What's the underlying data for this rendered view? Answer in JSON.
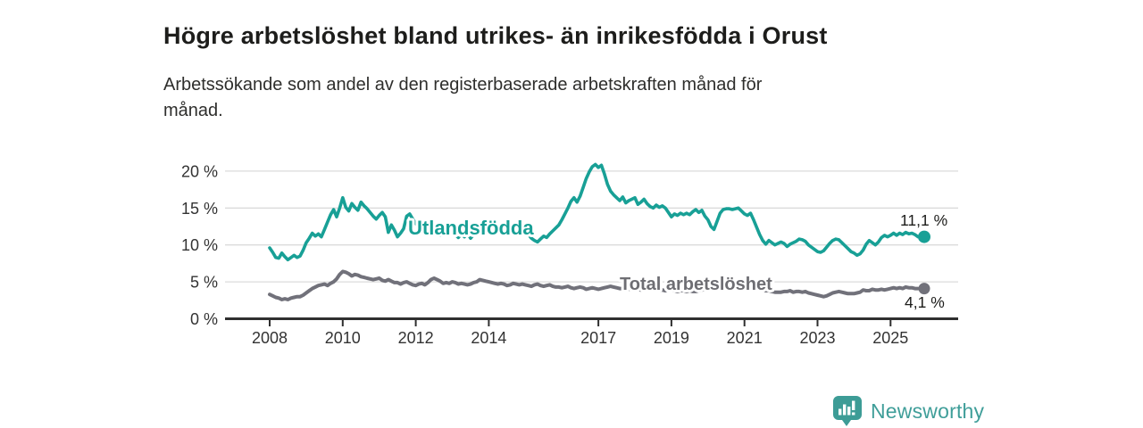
{
  "chart_data": {
    "type": "line",
    "title": "Högre arbetslöshet bland utrikes- än inrikesfödda i Orust",
    "subtitle": "Arbetssökande som andel av den registerbaserade arbetskraften månad för månad.",
    "y_unit": "%",
    "ylim": [
      0,
      21
    ],
    "xlim": [
      2007.9,
      2026.1
    ],
    "grid": "horizontal",
    "legend_position": "inline-labels",
    "x_interval": "monthly",
    "x_start_year": 2008,
    "y_ticks": [
      {
        "value": 0,
        "label": "0 %"
      },
      {
        "value": 5,
        "label": "5 %"
      },
      {
        "value": 10,
        "label": "10 %"
      },
      {
        "value": 15,
        "label": "15 %"
      },
      {
        "value": 20,
        "label": "20 %"
      }
    ],
    "x_ticks": [
      {
        "value": 2008,
        "label": "2008"
      },
      {
        "value": 2010,
        "label": "2010"
      },
      {
        "value": 2012,
        "label": "2012"
      },
      {
        "value": 2014,
        "label": "2014"
      },
      {
        "value": 2017,
        "label": "2017"
      },
      {
        "value": 2019,
        "label": "2019"
      },
      {
        "value": 2021,
        "label": "2021"
      },
      {
        "value": 2023,
        "label": "2023"
      },
      {
        "value": 2025,
        "label": "2025"
      }
    ],
    "series": [
      {
        "id": "utlandsfodda",
        "name": "Utlandsfödda",
        "color": "#18A096",
        "end_label": "11,1 %",
        "end_value": 11.1,
        "values": [
          9.6,
          9.0,
          8.3,
          8.2,
          8.9,
          8.4,
          8.0,
          8.3,
          8.6,
          8.3,
          8.5,
          9.3,
          10.3,
          10.9,
          11.6,
          11.2,
          11.5,
          11.1,
          12.1,
          13.1,
          14.1,
          14.8,
          13.8,
          15.0,
          16.4,
          15.1,
          14.6,
          15.6,
          15.1,
          14.7,
          15.8,
          15.3,
          14.9,
          14.4,
          13.9,
          13.5,
          14.0,
          14.4,
          13.8,
          11.7,
          12.7,
          12.0,
          11.1,
          11.6,
          12.2,
          13.9,
          14.2,
          13.5,
          12.9,
          12.5,
          12.2,
          11.6,
          12.0,
          11.7,
          11.4,
          11.8,
          11.3,
          12.0,
          12.6,
          12.9,
          12.4,
          11.4,
          11.0,
          11.5,
          11.1,
          11.6,
          10.9,
          11.4,
          11.8,
          11.6,
          12.0,
          11.8,
          12.2,
          12.0,
          11.9,
          12.1,
          12.3,
          12.0,
          11.8,
          12.0,
          12.1,
          11.9,
          11.7,
          11.8,
          11.9,
          11.4,
          10.9,
          10.6,
          10.4,
          10.8,
          11.2,
          11.0,
          11.5,
          11.9,
          12.3,
          12.7,
          13.4,
          14.2,
          15.0,
          15.9,
          16.4,
          15.8,
          16.6,
          17.8,
          19.0,
          19.9,
          20.6,
          20.9,
          20.5,
          20.8,
          19.6,
          18.2,
          17.3,
          16.8,
          16.4,
          16.0,
          16.5,
          15.7,
          16.0,
          16.2,
          16.4,
          15.5,
          15.8,
          16.2,
          15.6,
          15.2,
          15.0,
          15.4,
          15.1,
          15.3,
          15.0,
          14.4,
          13.8,
          14.2,
          14.0,
          14.3,
          14.1,
          14.3,
          14.1,
          14.5,
          14.8,
          14.4,
          14.7,
          13.9,
          13.4,
          12.5,
          12.1,
          13.2,
          14.3,
          14.8,
          14.9,
          14.9,
          14.8,
          14.9,
          15.0,
          14.6,
          14.2,
          14.0,
          14.3,
          13.4,
          12.4,
          11.4,
          10.6,
          10.1,
          10.6,
          10.3,
          10.0,
          10.2,
          10.4,
          10.2,
          9.8,
          10.1,
          10.3,
          10.5,
          10.8,
          10.7,
          10.5,
          10.0,
          9.7,
          9.4,
          9.1,
          9.0,
          9.2,
          9.7,
          10.2,
          10.6,
          10.8,
          10.7,
          10.3,
          9.9,
          9.5,
          9.1,
          8.9,
          8.6,
          8.8,
          9.3,
          10.1,
          10.6,
          10.3,
          10.0,
          10.4,
          11.0,
          11.3,
          11.1,
          11.3,
          11.6,
          11.3,
          11.6,
          11.4,
          11.7,
          11.5,
          11.6,
          11.4,
          11.1
        ]
      },
      {
        "id": "total",
        "name": "Total arbetslöshet",
        "color": "#71717A",
        "end_label": "4,1 %",
        "end_value": 4.1,
        "values": [
          3.3,
          3.1,
          2.9,
          2.8,
          2.6,
          2.7,
          2.6,
          2.8,
          2.9,
          3.0,
          3.0,
          3.2,
          3.5,
          3.8,
          4.1,
          4.3,
          4.5,
          4.6,
          4.7,
          4.5,
          4.8,
          5.0,
          5.4,
          6.0,
          6.4,
          6.3,
          6.1,
          5.8,
          6.0,
          5.9,
          5.7,
          5.6,
          5.5,
          5.4,
          5.3,
          5.4,
          5.5,
          5.2,
          5.1,
          5.3,
          5.1,
          4.9,
          4.9,
          4.7,
          4.9,
          5.0,
          4.8,
          4.6,
          4.5,
          4.7,
          4.8,
          4.6,
          4.9,
          5.3,
          5.5,
          5.3,
          5.1,
          4.8,
          4.9,
          4.8,
          5.0,
          4.9,
          4.7,
          4.8,
          4.7,
          4.6,
          4.7,
          4.9,
          5.0,
          5.3,
          5.2,
          5.1,
          5.0,
          4.9,
          4.8,
          4.7,
          4.8,
          4.7,
          4.5,
          4.6,
          4.8,
          4.7,
          4.6,
          4.7,
          4.6,
          4.5,
          4.4,
          4.6,
          4.7,
          4.5,
          4.4,
          4.5,
          4.6,
          4.4,
          4.3,
          4.3,
          4.2,
          4.3,
          4.4,
          4.2,
          4.1,
          4.2,
          4.3,
          4.2,
          4.0,
          4.1,
          4.2,
          4.1,
          4.0,
          4.1,
          4.2,
          4.3,
          4.4,
          4.3,
          4.2,
          4.1,
          4.1,
          4.0,
          4.0,
          4.1,
          4.1,
          4.0,
          3.9,
          4.0,
          4.0,
          3.9,
          4.0,
          3.9,
          3.8,
          3.9,
          3.8,
          3.9,
          3.9,
          3.8,
          3.7,
          3.8,
          3.8,
          3.7,
          3.8,
          3.7,
          3.7,
          3.8,
          3.9,
          4.0,
          4.0,
          4.2,
          4.4,
          4.5,
          4.6,
          4.6,
          4.5,
          4.5,
          4.4,
          4.5,
          4.4,
          4.4,
          4.4,
          4.3,
          4.2,
          4.1,
          4.0,
          4.0,
          3.9,
          3.8,
          3.8,
          3.7,
          3.6,
          3.6,
          3.6,
          3.7,
          3.7,
          3.8,
          3.6,
          3.7,
          3.7,
          3.6,
          3.7,
          3.5,
          3.4,
          3.3,
          3.2,
          3.1,
          3.0,
          3.1,
          3.3,
          3.5,
          3.6,
          3.7,
          3.6,
          3.5,
          3.4,
          3.4,
          3.4,
          3.5,
          3.6,
          3.9,
          3.8,
          3.8,
          4.0,
          3.9,
          3.9,
          4.0,
          3.9,
          4.0,
          4.1,
          4.2,
          4.1,
          4.2,
          4.1,
          4.3,
          4.2,
          4.2,
          4.1,
          4.1
        ]
      }
    ]
  },
  "footer": {
    "brand": "Newsworthy",
    "brand_color": "#3F9E99"
  }
}
